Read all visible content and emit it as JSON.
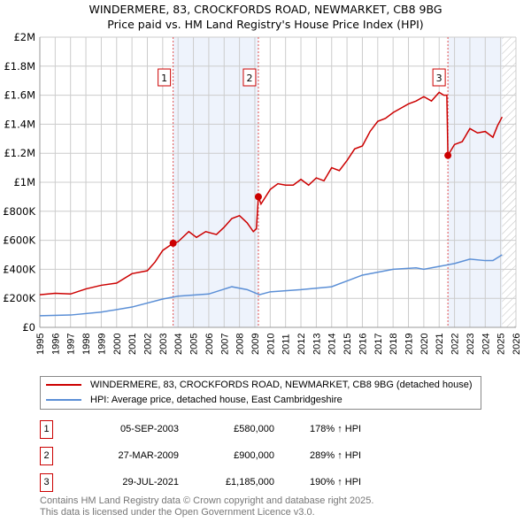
{
  "chart_data": {
    "type": "line",
    "title": "WINDERMERE, 83, CROCKFORDS ROAD, NEWMARKET, CB8 9BG",
    "subtitle": "Price paid vs. HM Land Registry's House Price Index (HPI)",
    "xlim": [
      1995,
      2026
    ],
    "ylim": [
      0,
      2000000
    ],
    "y_ticks": [
      {
        "v": 0,
        "label": "£0"
      },
      {
        "v": 200000,
        "label": "£200K"
      },
      {
        "v": 400000,
        "label": "£400K"
      },
      {
        "v": 600000,
        "label": "£600K"
      },
      {
        "v": 800000,
        "label": "£800K"
      },
      {
        "v": 1000000,
        "label": "£1M"
      },
      {
        "v": 1200000,
        "label": "£1.2M"
      },
      {
        "v": 1400000,
        "label": "£1.4M"
      },
      {
        "v": 1600000,
        "label": "£1.6M"
      },
      {
        "v": 1800000,
        "label": "£1.8M"
      },
      {
        "v": 2000000,
        "label": "£2M"
      }
    ],
    "x_ticks": [
      "1995",
      "1996",
      "1997",
      "1998",
      "1999",
      "2000",
      "2001",
      "2002",
      "2003",
      "2004",
      "2005",
      "2006",
      "2007",
      "2008",
      "2009",
      "2010",
      "2011",
      "2012",
      "2013",
      "2014",
      "2015",
      "2016",
      "2017",
      "2018",
      "2019",
      "2020",
      "2021",
      "2022",
      "2023",
      "2024",
      "2025",
      "2026"
    ],
    "grid": true,
    "shaded_ranges": [
      [
        2003.68,
        2009.23
      ],
      [
        2021.57,
        2025.1
      ]
    ],
    "hatched_range": [
      2025.1,
      2026
    ],
    "series": [
      {
        "name": "WINDERMERE, 83, CROCKFORDS ROAD, NEWMARKET, CB8 9BG (detached house)",
        "color": "#cc0000",
        "x": [
          1995,
          1996,
          1997,
          1998,
          1999,
          2000,
          2001,
          2002,
          2002.5,
          2003,
          2003.68,
          2004,
          2004.7,
          2005.2,
          2005.8,
          2006.5,
          2007,
          2007.5,
          2008,
          2008.5,
          2008.9,
          2009.1,
          2009.23,
          2009.4,
          2010,
          2010.5,
          2011,
          2011.5,
          2012,
          2012.5,
          2013,
          2013.5,
          2014,
          2014.5,
          2015,
          2015.5,
          2016,
          2016.5,
          2017,
          2017.5,
          2018,
          2018.5,
          2019,
          2019.5,
          2020,
          2020.5,
          2021,
          2021.3,
          2021.5,
          2021.57,
          2022,
          2022.5,
          2023,
          2023.5,
          2024,
          2024.5,
          2024.8,
          2025.1
        ],
        "values": [
          225000,
          235000,
          230000,
          265000,
          290000,
          305000,
          370000,
          390000,
          450000,
          530000,
          580000,
          590000,
          660000,
          620000,
          660000,
          640000,
          690000,
          750000,
          770000,
          720000,
          660000,
          680000,
          900000,
          850000,
          950000,
          990000,
          980000,
          980000,
          1020000,
          980000,
          1030000,
          1010000,
          1100000,
          1080000,
          1150000,
          1230000,
          1250000,
          1350000,
          1420000,
          1440000,
          1480000,
          1510000,
          1540000,
          1560000,
          1590000,
          1560000,
          1620000,
          1600000,
          1600000,
          1185000,
          1260000,
          1280000,
          1370000,
          1340000,
          1350000,
          1310000,
          1390000,
          1450000
        ]
      },
      {
        "name": "HPI: Average price, detached house, East Cambridgeshire",
        "color": "#5b8fd6",
        "x": [
          1995,
          1997,
          1999,
          2001,
          2003,
          2004,
          2006,
          2007.5,
          2008.5,
          2009.3,
          2010,
          2012,
          2014,
          2015,
          2016,
          2018,
          2019.5,
          2020,
          2021,
          2022,
          2023,
          2024,
          2024.5,
          2025.1
        ],
        "values": [
          80000,
          85000,
          105000,
          140000,
          195000,
          215000,
          230000,
          280000,
          260000,
          225000,
          245000,
          260000,
          280000,
          320000,
          360000,
          400000,
          410000,
          400000,
          420000,
          440000,
          470000,
          460000,
          460000,
          500000
        ]
      }
    ],
    "sales": [
      {
        "label": "1",
        "x": 2003.68,
        "value": 580000,
        "date": "05-SEP-2003",
        "price": "£580,000",
        "hpi": "178% ↑ HPI"
      },
      {
        "label": "2",
        "x": 2009.23,
        "value": 900000,
        "date": "27-MAR-2009",
        "price": "£900,000",
        "hpi": "289% ↑ HPI"
      },
      {
        "label": "3",
        "x": 2021.57,
        "value": 1185000,
        "date": "29-JUL-2021",
        "price": "£1,185,000",
        "hpi": "190% ↑ HPI"
      }
    ]
  },
  "footer": {
    "line1": "Contains HM Land Registry data © Crown copyright and database right 2025.",
    "line2": "This data is licensed under the Open Government Licence v3.0."
  }
}
